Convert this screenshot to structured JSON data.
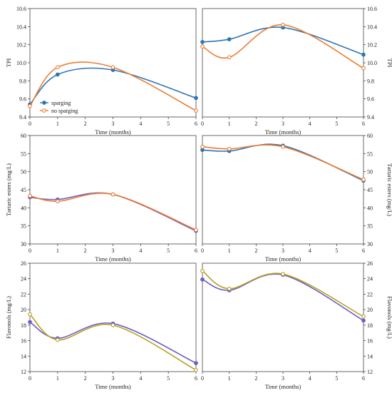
{
  "chart_data": [
    {
      "type": "line",
      "panel": "top-left",
      "xlabel": "Time (months)",
      "ylabel": "TPI",
      "xlim": [
        0,
        6
      ],
      "ylim": [
        9.4,
        10.6
      ],
      "x_ticks": [
        0,
        1,
        2,
        3,
        4,
        5,
        6
      ],
      "y_ticks": [
        9.4,
        9.6,
        9.8,
        10.0,
        10.2,
        10.4,
        10.6
      ],
      "y_tick_labels": [
        "9.4",
        "9.6",
        "9.8",
        "10.0",
        "10.2",
        "10.4",
        "10.6"
      ],
      "y_axis_side": "left",
      "legend": [
        {
          "label": "sparging",
          "series_index": 0
        },
        {
          "label": "no sparging",
          "series_index": 1
        }
      ],
      "legend_position": "bottom-left",
      "series": [
        {
          "name": "sparging",
          "color": "#2E75B6",
          "marker": "filled",
          "x": [
            0,
            1,
            3,
            6
          ],
          "values": [
            9.54,
            9.87,
            9.92,
            9.61
          ]
        },
        {
          "name": "no sparging",
          "color": "#ED7D31",
          "marker": "open",
          "x": [
            0,
            1,
            3,
            6
          ],
          "values": [
            9.52,
            9.95,
            9.95,
            9.47
          ]
        }
      ]
    },
    {
      "type": "line",
      "panel": "top-right",
      "xlabel": "Time (months)",
      "ylabel": "TPI",
      "xlim": [
        0,
        6
      ],
      "ylim": [
        9.4,
        10.6
      ],
      "x_ticks": [
        0,
        1,
        2,
        3,
        4,
        5,
        6
      ],
      "y_ticks": [
        9.4,
        9.6,
        9.8,
        10.0,
        10.2,
        10.4,
        10.6
      ],
      "y_tick_labels": [
        "9.4",
        "9.6",
        "9.8",
        "10.0",
        "10.2",
        "10.4",
        "10.6"
      ],
      "y_axis_side": "right",
      "series": [
        {
          "color": "#2E75B6",
          "marker": "filled",
          "x": [
            0,
            1,
            3,
            6
          ],
          "values": [
            10.23,
            10.26,
            10.39,
            10.09
          ]
        },
        {
          "color": "#ED7D31",
          "marker": "open",
          "x": [
            0,
            1,
            3,
            6
          ],
          "values": [
            10.18,
            10.06,
            10.42,
            9.94
          ]
        }
      ]
    },
    {
      "type": "line",
      "panel": "middle-left",
      "xlabel": "Time (months)",
      "ylabel": "Tartaric esters (mg/L)",
      "xlim": [
        0,
        6
      ],
      "ylim": [
        30,
        60
      ],
      "x_ticks": [
        0,
        1,
        2,
        3,
        4,
        5,
        6
      ],
      "y_ticks": [
        30,
        35,
        40,
        45,
        50,
        55,
        60
      ],
      "y_tick_labels": [
        "30",
        "35",
        "40",
        "45",
        "50",
        "55",
        "60"
      ],
      "y_axis_side": "left",
      "series": [
        {
          "color": "#7060C0",
          "marker": "filled",
          "x": [
            0,
            1,
            3,
            6
          ],
          "values": [
            42.9,
            42.3,
            43.7,
            33.6
          ]
        },
        {
          "color": "#ED7D31",
          "marker": "open",
          "x": [
            0,
            1,
            3,
            6
          ],
          "values": [
            43.3,
            41.8,
            43.7,
            33.9
          ]
        }
      ]
    },
    {
      "type": "line",
      "panel": "middle-right",
      "xlabel": "Time (months)",
      "ylabel": "Tartaric esters (mg/L)",
      "xlim": [
        0,
        6
      ],
      "ylim": [
        30,
        60
      ],
      "x_ticks": [
        0,
        1,
        2,
        3,
        4,
        5,
        6
      ],
      "y_ticks": [
        30,
        35,
        40,
        45,
        50,
        55,
        60
      ],
      "y_tick_labels": [
        "30",
        "35",
        "40",
        "45",
        "50",
        "55",
        "60"
      ],
      "y_axis_side": "right",
      "series": [
        {
          "color": "#2E75B6",
          "marker": "filled",
          "x": [
            0,
            1,
            3,
            6
          ],
          "values": [
            56.0,
            55.7,
            57.2,
            47.5
          ]
        },
        {
          "color": "#ED7D31",
          "marker": "open",
          "x": [
            0,
            1,
            3,
            6
          ],
          "values": [
            56.9,
            56.3,
            56.9,
            47.8
          ]
        }
      ]
    },
    {
      "type": "line",
      "panel": "bottom-left",
      "xlabel": "Time (months)",
      "ylabel": "Flavonols (mg/L)",
      "xlim": [
        0,
        6
      ],
      "ylim": [
        12,
        26
      ],
      "x_ticks": [
        0,
        1,
        2,
        3,
        4,
        5,
        6
      ],
      "y_ticks": [
        12,
        14,
        16,
        18,
        20,
        22,
        24,
        26
      ],
      "y_tick_labels": [
        "12",
        "14",
        "16",
        "18",
        "20",
        "22",
        "24",
        "26"
      ],
      "y_axis_side": "left",
      "series": [
        {
          "color": "#6A5FC6",
          "marker": "filled",
          "x": [
            0,
            1,
            3,
            6
          ],
          "values": [
            18.4,
            16.3,
            18.2,
            13.1
          ]
        },
        {
          "color": "#B8A020",
          "marker": "open",
          "x": [
            0,
            1,
            3,
            6
          ],
          "values": [
            19.4,
            16.1,
            18.0,
            12.2
          ]
        }
      ]
    },
    {
      "type": "line",
      "panel": "bottom-right",
      "xlabel": "Time (months)",
      "ylabel": "Flavonols (mg/L)",
      "xlim": [
        0,
        6
      ],
      "ylim": [
        12,
        26
      ],
      "x_ticks": [
        0,
        1,
        2,
        3,
        4,
        5,
        6
      ],
      "y_ticks": [
        12,
        14,
        16,
        18,
        20,
        22,
        24,
        26
      ],
      "y_tick_labels": [
        "12",
        "14",
        "16",
        "18",
        "20",
        "22",
        "24",
        "26"
      ],
      "y_axis_side": "right",
      "series": [
        {
          "color": "#6A5FC6",
          "marker": "filled",
          "x": [
            0,
            1,
            3,
            6
          ],
          "values": [
            23.9,
            22.5,
            24.5,
            18.6
          ]
        },
        {
          "color": "#B8A020",
          "marker": "open",
          "x": [
            0,
            1,
            3,
            6
          ],
          "values": [
            25.0,
            22.7,
            24.6,
            19.1
          ]
        }
      ]
    }
  ]
}
